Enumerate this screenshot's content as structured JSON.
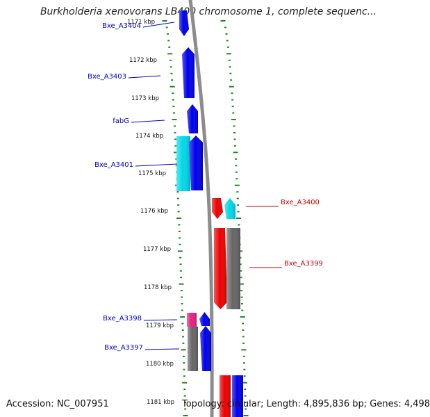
{
  "title": "Burkholderia xenovorans LB400 chromosome 1, complete sequenc...",
  "accession": "Accession: NC_007951",
  "topology": "Topology: circular; Length: 4,895,836 bp; Genes: 4,498",
  "colors": {
    "backbone": "#8c8c8c",
    "tick": "#1f8a1f",
    "label_left": "#0000cc",
    "label_right": "#cc0000",
    "gene_blue": "#0000ee",
    "gene_cyan": "#00d8e8",
    "gene_red": "#ee0000",
    "gene_gray": "#666666",
    "gene_magenta": "#e8207e"
  },
  "axis": {
    "ticks": [
      {
        "label": "1171 kbp",
        "kbp": 1171
      },
      {
        "label": "1172 kbp",
        "kbp": 1172
      },
      {
        "label": "1173 kbp",
        "kbp": 1173
      },
      {
        "label": "1174 kbp",
        "kbp": 1174
      },
      {
        "label": "1175 kbp",
        "kbp": 1175
      },
      {
        "label": "1176 kbp",
        "kbp": 1176
      },
      {
        "label": "1177 kbp",
        "kbp": 1177
      },
      {
        "label": "1178 kbp",
        "kbp": 1178
      },
      {
        "label": "1179 kbp",
        "kbp": 1179
      },
      {
        "label": "1180 kbp",
        "kbp": 1180
      },
      {
        "label": "1181 kbp",
        "kbp": 1181
      }
    ]
  },
  "gene_labels": [
    {
      "text": "Bxe_A3404",
      "side": "left"
    },
    {
      "text": "Bxe_A3403",
      "side": "left"
    },
    {
      "text": "fabG",
      "side": "left"
    },
    {
      "text": "Bxe_A3401",
      "side": "left"
    },
    {
      "text": "Bxe_A3400",
      "side": "right"
    },
    {
      "text": "Bxe_A3399",
      "side": "right"
    },
    {
      "text": "Bxe_A3398",
      "side": "left"
    },
    {
      "text": "Bxe_A3397",
      "side": "left"
    }
  ],
  "features": [
    {
      "color": "gene_blue",
      "direction": "down"
    },
    {
      "color": "gene_blue",
      "direction": "up"
    },
    {
      "color": "gene_blue",
      "direction": "up"
    },
    {
      "color": "gene_cyan",
      "direction": "none"
    },
    {
      "color": "gene_blue",
      "direction": "up"
    },
    {
      "color": "gene_red",
      "direction": "down"
    },
    {
      "color": "gene_cyan",
      "direction": "up"
    },
    {
      "color": "gene_red",
      "direction": "down"
    },
    {
      "color": "gene_gray",
      "direction": "none"
    },
    {
      "color": "gene_magenta",
      "direction": "none"
    },
    {
      "color": "gene_blue",
      "direction": "up"
    },
    {
      "color": "gene_gray",
      "direction": "none"
    },
    {
      "color": "gene_blue",
      "direction": "up"
    },
    {
      "color": "gene_red",
      "direction": "none"
    },
    {
      "color": "gene_blue",
      "direction": "none"
    }
  ]
}
